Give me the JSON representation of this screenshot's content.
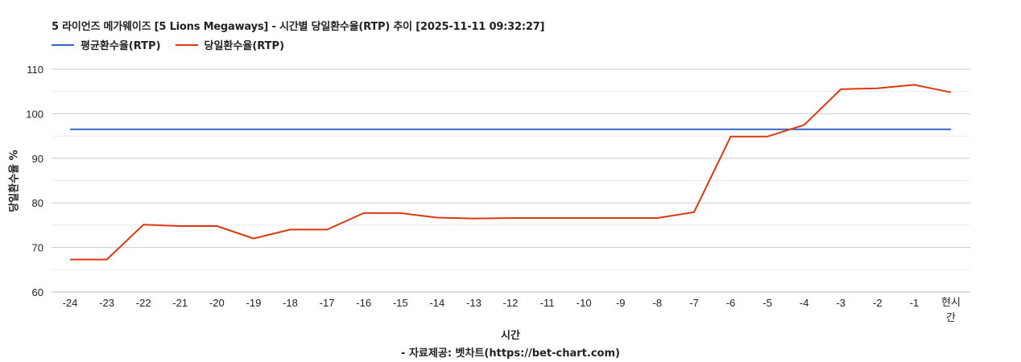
{
  "chart_data": {
    "type": "line",
    "title": "5 라이언즈 메가웨이즈 [5 Lions Megaways] - 시간별 당일환수율(RTP) 추이 [2025-11-11 09:32:27]",
    "xlabel": "시간",
    "ylabel": "당일환수율 %",
    "credit": "- 자료제공: 벳차트(https://bet-chart.com)",
    "categories": [
      "-24",
      "-23",
      "-22",
      "-21",
      "-20",
      "-19",
      "-18",
      "-17",
      "-16",
      "-15",
      "-14",
      "-13",
      "-12",
      "-11",
      "-10",
      "-9",
      "-8",
      "-7",
      "-6",
      "-5",
      "-4",
      "-3",
      "-2",
      "-1",
      "현시간"
    ],
    "yticks": [
      60,
      70,
      80,
      90,
      100,
      110
    ],
    "ylim": [
      60,
      110
    ],
    "grid": true,
    "legend_position": "top-left",
    "series": [
      {
        "name": "평균환수율(RTP)",
        "color": "#3366cc",
        "values": [
          96.5,
          96.5,
          96.5,
          96.5,
          96.5,
          96.5,
          96.5,
          96.5,
          96.5,
          96.5,
          96.5,
          96.5,
          96.5,
          96.5,
          96.5,
          96.5,
          96.5,
          96.5,
          96.5,
          96.5,
          96.5,
          96.5,
          96.5,
          96.5,
          96.5
        ]
      },
      {
        "name": "당일환수율(RTP)",
        "color": "#dc3912",
        "values": [
          67.3,
          67.3,
          75.1,
          74.8,
          74.8,
          72.0,
          74.0,
          74.0,
          77.7,
          77.7,
          76.7,
          76.5,
          76.6,
          76.6,
          76.6,
          76.6,
          76.6,
          77.9,
          94.9,
          94.9,
          97.5,
          105.5,
          105.7,
          106.5,
          104.8
        ]
      }
    ]
  }
}
